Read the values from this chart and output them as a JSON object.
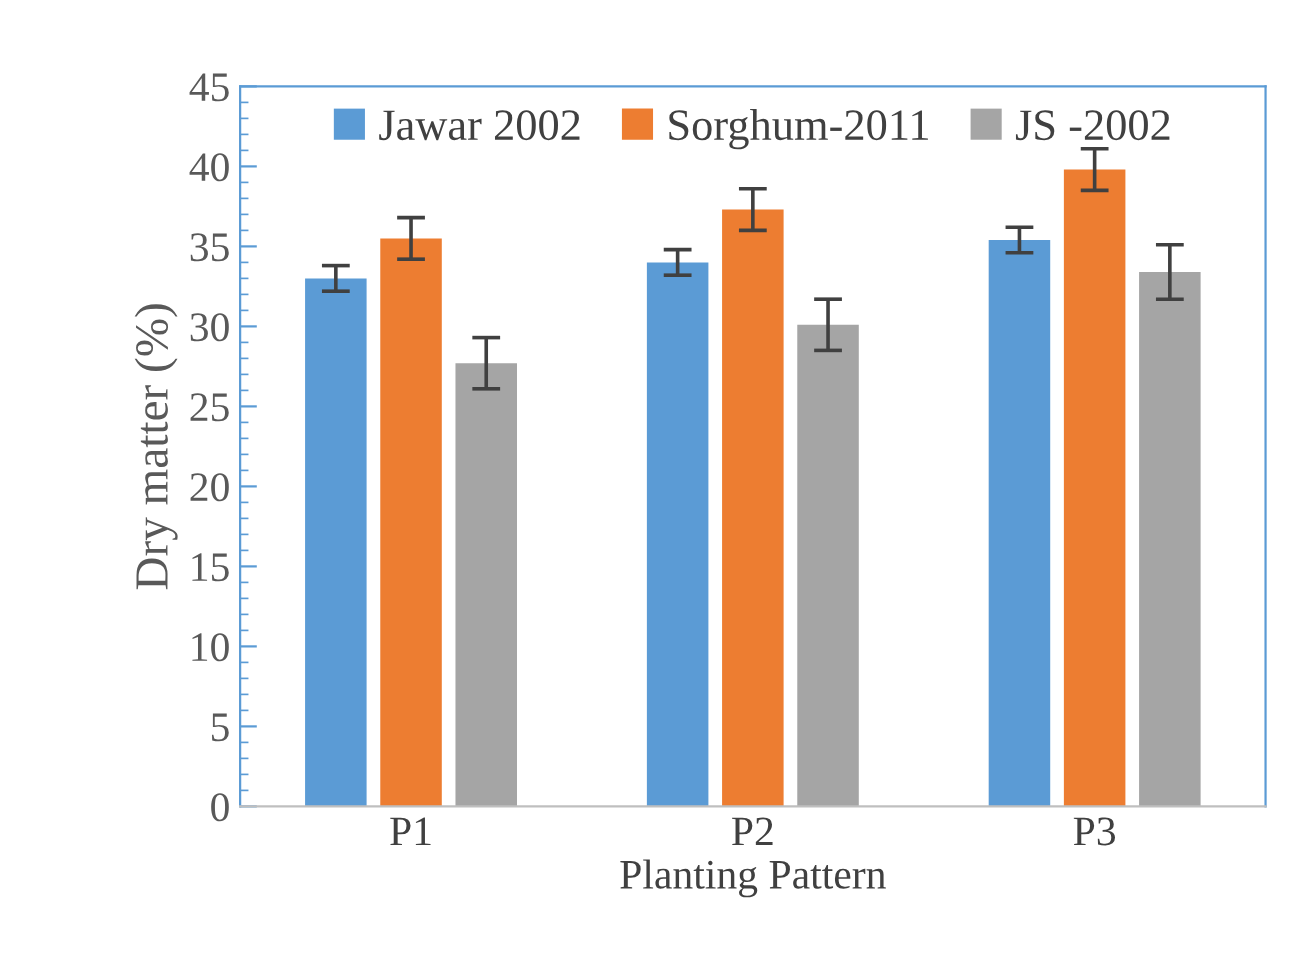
{
  "chart_data": {
    "type": "bar",
    "xlabel": "Planting Pattern",
    "ylabel": "Dry matter (%)",
    "categories": [
      "P1",
      "P2",
      "P3"
    ],
    "series": [
      {
        "name": "Jawar 2002",
        "color": "#5b9bd5",
        "values": [
          33.0,
          34.0,
          35.4
        ],
        "errors": [
          0.8,
          0.8,
          0.8
        ]
      },
      {
        "name": "Sorghum-2011",
        "color": "#ed7d31",
        "values": [
          35.5,
          37.3,
          39.8
        ],
        "errors": [
          1.3,
          1.3,
          1.3
        ]
      },
      {
        "name": "JS -2002",
        "color": "#a5a5a5",
        "values": [
          27.7,
          30.1,
          33.4
        ],
        "errors": [
          1.6,
          1.6,
          1.7
        ]
      }
    ],
    "ylim": [
      0,
      45
    ],
    "yticks": [
      0,
      5,
      10,
      15,
      20,
      25,
      30,
      35,
      40,
      45
    ],
    "grid": false,
    "legend": "top"
  }
}
